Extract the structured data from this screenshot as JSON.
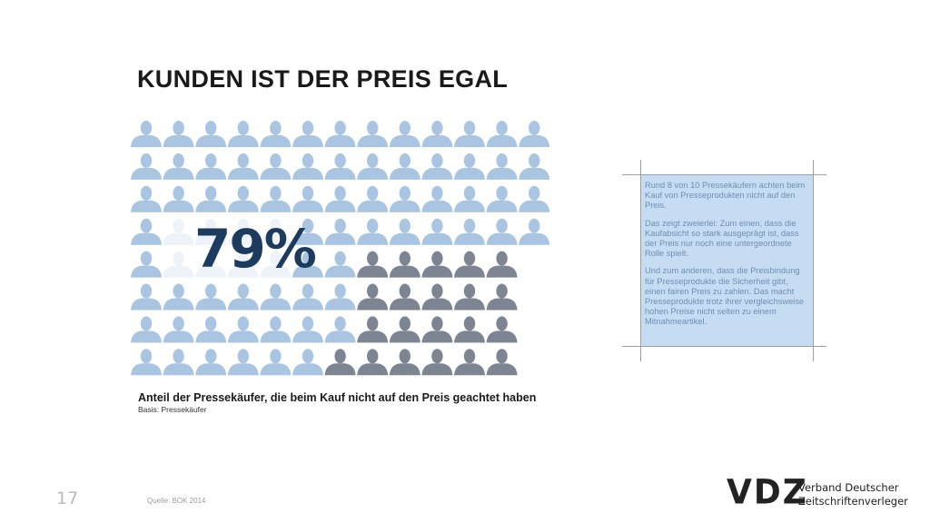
{
  "title": "KUNDEN IST DER PREIS EGAL",
  "chart_data": {
    "type": "icon-array",
    "percent_label": "79%",
    "caption": "Anteil der Pressekäufer, die beim Kauf nicht auf den Preis geachtet haben",
    "basis": "Basis: Pressekäufer",
    "colors": {
      "light": "#a9c5e2",
      "dark": "#7e8592"
    }
  },
  "infobox": {
    "paragraphs": [
      "Rund 8 von 10 Pressekäufern achten beim Kauf von Presseprodukten nicht auf den Preis.",
      "Das zeigt zweierlei: Zum einen, dass die Kaufabsicht so stark ausgeprägt ist, dass der Preis nur noch eine untergeordnete Rolle spielt.",
      "Und zum anderen, dass die Preisbindung für Presseprodukte die Sicherheit gibt, einen fairen Preis zu zahlen. Das macht Presseprodukte trotz ihrer vergleichsweise hohen Preise nicht selten zu einem Mitnahmeartikel."
    ]
  },
  "footer": {
    "page_number": "17",
    "source": "Quelle: BOK 2014",
    "logo_mark": "VDZ",
    "logo_line1": "Verband Deutscher",
    "logo_line2": "Zeitschriftenverleger"
  }
}
